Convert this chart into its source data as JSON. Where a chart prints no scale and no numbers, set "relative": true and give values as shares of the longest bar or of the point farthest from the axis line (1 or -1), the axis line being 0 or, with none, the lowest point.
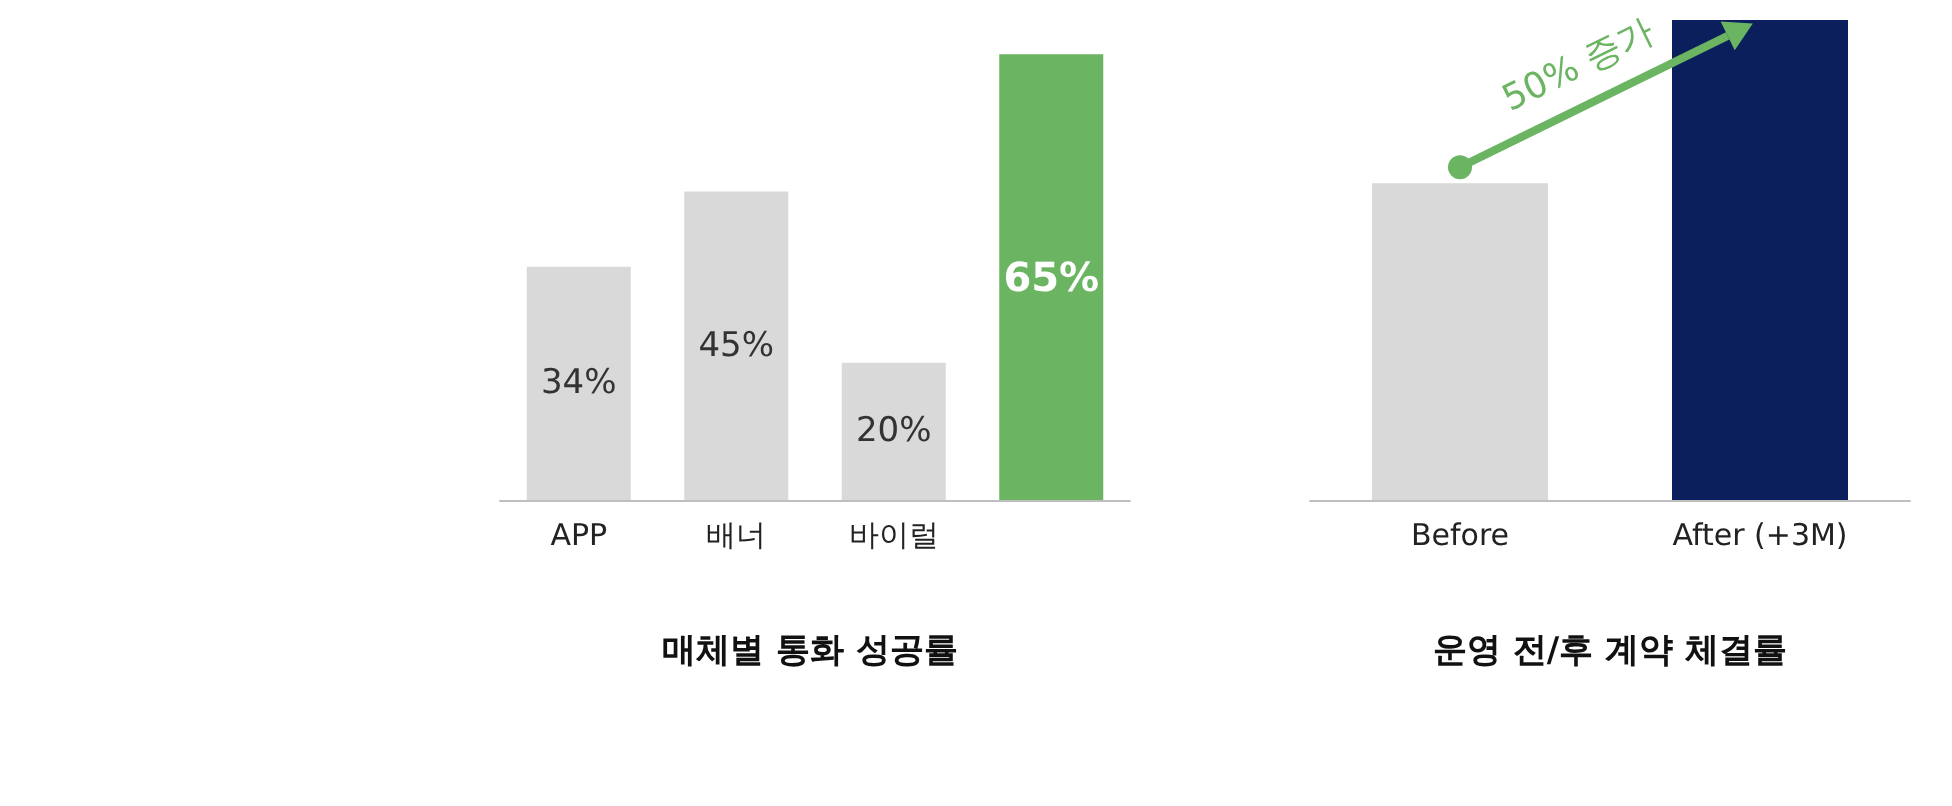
{
  "chart_data": [
    {
      "type": "bar",
      "title": "매체별 통화 성공률",
      "categories": [
        "APP",
        "배너",
        "바이럴",
        null
      ],
      "series": [
        {
          "values": [
            34,
            45,
            20,
            65
          ],
          "colors": [
            "#d9d9d9",
            "#d9d9d9",
            "#d9d9d9",
            "#6bb562"
          ],
          "value_labels": [
            "34%",
            "45%",
            "20%",
            "65%"
          ]
        }
      ],
      "tick_labels": "x"
    },
    {
      "type": "bar",
      "title": "운영 전/후 계약 체결률",
      "categories": [
        "Before",
        "After (+3M)"
      ],
      "relative": true,
      "series": [
        {
          "values": [
            0.66,
            1
          ],
          "colors": [
            "#d9d9d9",
            "#0a1f5c"
          ]
        }
      ],
      "annotations": [
        "50% 증가"
      ]
    }
  ]
}
